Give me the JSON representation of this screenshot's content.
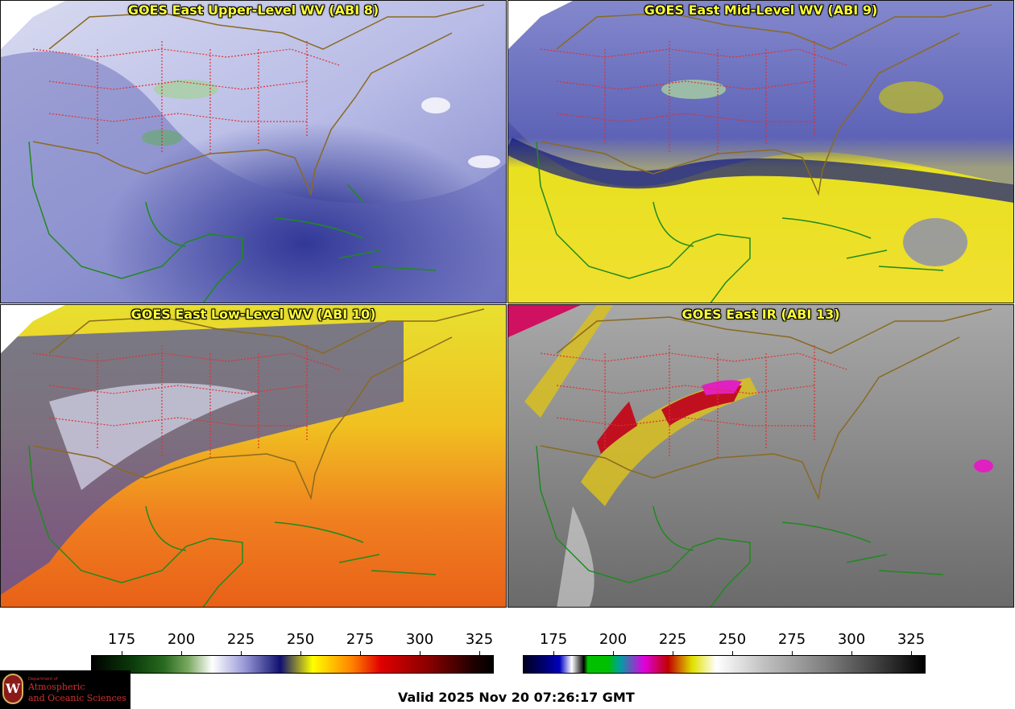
{
  "panels": [
    {
      "title": "GOES East Upper-Level WV (ABI 8)",
      "palette": "wv-upper"
    },
    {
      "title": "GOES East Mid-Level WV (ABI 9)",
      "palette": "wv-mid"
    },
    {
      "title": "GOES East Low-Level WV (ABI 10)",
      "palette": "wv-low"
    },
    {
      "title": "GOES East IR (ABI 13)",
      "palette": "ir"
    }
  ],
  "colorbars": {
    "wv": {
      "ticks": [
        "175",
        "200",
        "225",
        "250",
        "275",
        "300",
        "325"
      ]
    },
    "ir": {
      "ticks": [
        "175",
        "200",
        "225",
        "250",
        "275",
        "300",
        "325"
      ]
    }
  },
  "logo": {
    "dept": "Department of",
    "line1": "Atmospheric",
    "line2": "and Oceanic Sciences",
    "seal": "W"
  },
  "valid_time": "Valid 2025 Nov 20 07:26:17 GMT",
  "colors": {
    "coastline": "#1f8a1f",
    "state_lines": "#e03030",
    "title_text": "#ffff33"
  }
}
